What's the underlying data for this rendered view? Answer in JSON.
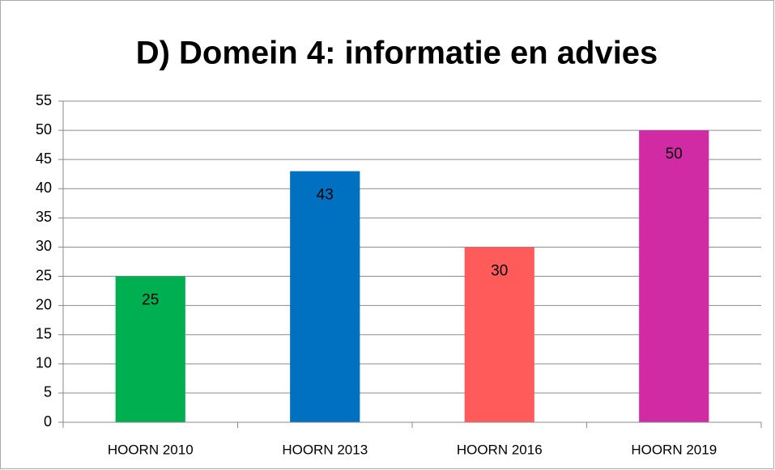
{
  "chart_data": {
    "type": "bar",
    "title": "D) Domein 4: informatie en advies",
    "categories": [
      "HOORN 2010",
      "HOORN 2013",
      "HOORN 2016",
      "HOORN 2019"
    ],
    "values": [
      25,
      43,
      30,
      50
    ],
    "colors": [
      "#00b050",
      "#0070c0",
      "#ff5b5b",
      "#d12aa5"
    ],
    "ylim": [
      0,
      55
    ],
    "yticks": [
      0,
      5,
      10,
      15,
      20,
      25,
      30,
      35,
      40,
      45,
      50,
      55
    ],
    "grid": true
  }
}
